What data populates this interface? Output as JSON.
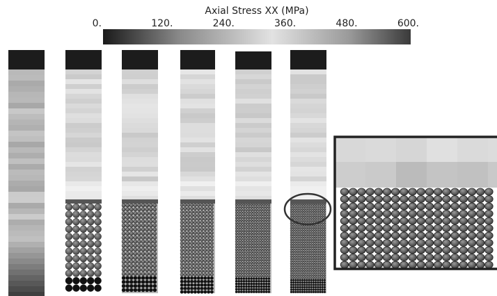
{
  "colorbar": {
    "title": "Axial Stress XX (MPa)",
    "tick_labels": [
      "0.",
      "120.",
      "240.",
      "360.",
      "480.",
      "600."
    ]
  }
}
